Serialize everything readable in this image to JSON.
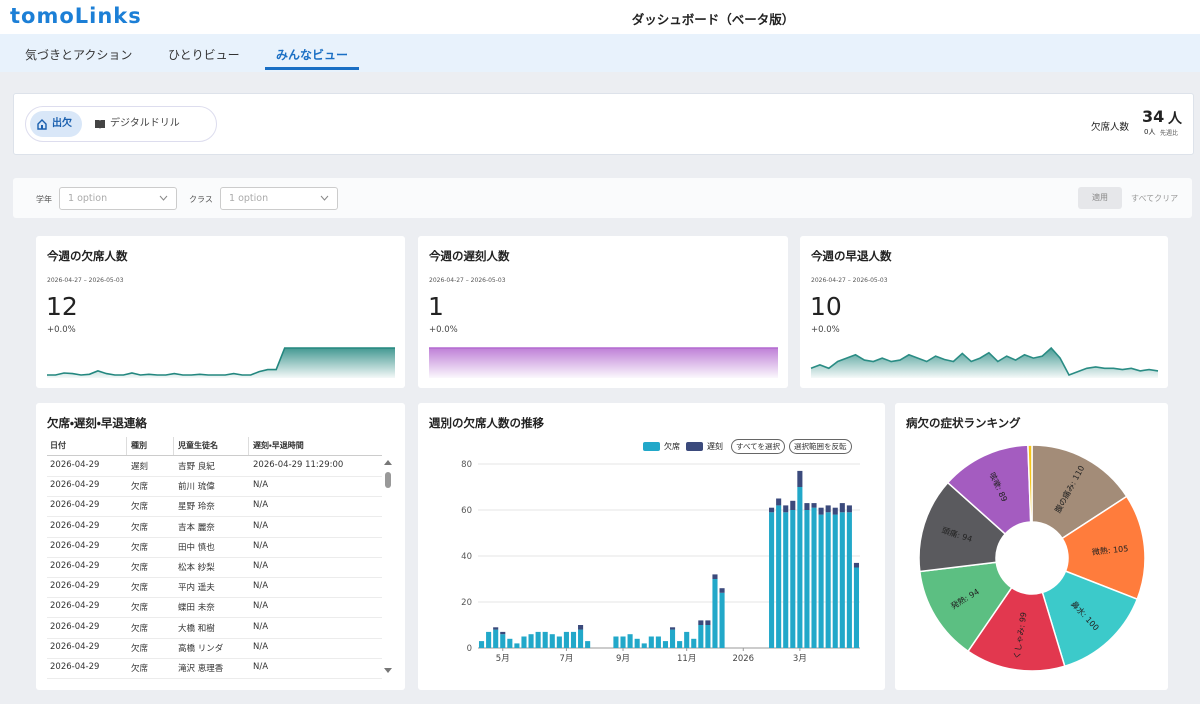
{
  "header": {
    "logo": "tomoLinks",
    "title": "ダッシュボード（ベータ版）"
  },
  "tabs": [
    "気づきとアクション",
    "ひとりビュー",
    "みんなビュー"
  ],
  "active_tab": 2,
  "toggle": {
    "options": [
      "出欠",
      "デジタルドリル"
    ],
    "active": 0
  },
  "summary": {
    "label": "欠席人数",
    "value": 34,
    "unit": "人",
    "change": "0人",
    "change_label": "先週比"
  },
  "filters": {
    "items": [
      {
        "label": "学年",
        "placeholder": "1 option"
      },
      {
        "label": "クラス",
        "placeholder": "1 option"
      }
    ],
    "apply": "適用",
    "clear": "すべてクリア"
  },
  "kpis": [
    {
      "title": "今週の欠席人数",
      "period": "2026-04-27 – 2026-05-03",
      "value": 12,
      "change": "+0.0%",
      "color": "#23877f",
      "sparkline": [
        1,
        1,
        1.3,
        1.2,
        1,
        1.1,
        1.6,
        1.2,
        1,
        1,
        1.3,
        1,
        1.1,
        1,
        1,
        1.2,
        1,
        1,
        1.1,
        1,
        1,
        1,
        1.2,
        1,
        1,
        1.5,
        1.8,
        1.8,
        5,
        5,
        5,
        5,
        5,
        5,
        5,
        5,
        5,
        5,
        5,
        5,
        5,
        5
      ]
    },
    {
      "title": "今週の遅刻人数",
      "period": "2026-04-27 – 2026-05-03",
      "value": 1,
      "change": "+0.0%",
      "color": "#b46ad0",
      "sparkline": [
        1,
        1,
        1,
        1,
        1,
        1,
        1,
        1,
        1,
        1,
        1,
        1,
        1,
        1,
        1,
        1,
        1,
        1,
        1,
        1
      ]
    },
    {
      "title": "今週の早退人数",
      "period": "2026-04-27 – 2026-05-03",
      "value": 10,
      "change": "+0.0%",
      "color": "#2a8c84",
      "sparkline": [
        2,
        2.5,
        2,
        3,
        3.5,
        4,
        3.2,
        3,
        3.5,
        3,
        3.2,
        4,
        3.5,
        3,
        3.8,
        3.3,
        3,
        4.2,
        3,
        3.5,
        4.3,
        3,
        3.8,
        3.2,
        4,
        3.5,
        3.8,
        5,
        3.5,
        1,
        1.5,
        2,
        2.2,
        2,
        2,
        1.8,
        2,
        1.6,
        1.8,
        1.6
      ]
    }
  ],
  "table": {
    "title": "欠席・遅刻・早退連絡",
    "columns": [
      "日付",
      "種別",
      "児童生徒名",
      "遅刻・早退時間"
    ],
    "rows": [
      [
        "2026-04-29",
        "遅刻",
        "吉野 良紀",
        "2026-04-29 11:29:00"
      ],
      [
        "2026-04-29",
        "欠席",
        "前川 琉偉",
        "N/A"
      ],
      [
        "2026-04-29",
        "欠席",
        "星野 玲奈",
        "N/A"
      ],
      [
        "2026-04-29",
        "欠席",
        "吉本 麗奈",
        "N/A"
      ],
      [
        "2026-04-29",
        "欠席",
        "田中 慎也",
        "N/A"
      ],
      [
        "2026-04-29",
        "欠席",
        "松本 紗梨",
        "N/A"
      ],
      [
        "2026-04-29",
        "欠席",
        "平内 遥夫",
        "N/A"
      ],
      [
        "2026-04-29",
        "欠席",
        "蝶田 未奈",
        "N/A"
      ],
      [
        "2026-04-29",
        "欠席",
        "大橋 和樹",
        "N/A"
      ],
      [
        "2026-04-29",
        "欠席",
        "高橋 リンダ",
        "N/A"
      ],
      [
        "2026-04-29",
        "欠席",
        "滝沢 恵理香",
        "N/A"
      ]
    ]
  },
  "chart_data": [
    {
      "type": "bar",
      "stacked": true,
      "title": "週別の欠席人数の推移",
      "categories": [
        null,
        null,
        null,
        "5月",
        null,
        null,
        null,
        null,
        null,
        null,
        null,
        null,
        "7月",
        null,
        null,
        null,
        null,
        null,
        null,
        null,
        "9月",
        null,
        null,
        null,
        null,
        null,
        null,
        null,
        null,
        "11月",
        null,
        null,
        null,
        null,
        null,
        null,
        null,
        "2026",
        null,
        null,
        null,
        null,
        null,
        null,
        null,
        "3月",
        null,
        null,
        null,
        null,
        null,
        null,
        null,
        null
      ],
      "series": [
        {
          "name": "欠席",
          "color": "#22a8c9",
          "values": [
            3,
            7,
            8,
            6,
            4,
            2,
            5,
            6,
            7,
            7,
            6,
            5,
            7,
            7,
            8,
            3,
            0,
            0,
            0,
            5,
            5,
            6,
            4,
            2,
            5,
            5,
            3,
            8,
            3,
            7,
            4,
            10,
            10,
            30,
            24,
            0,
            0,
            0,
            0,
            0,
            0,
            59,
            62,
            59,
            60,
            70,
            60,
            61,
            58,
            59,
            58,
            59,
            59,
            35
          ]
        },
        {
          "name": "遅刻",
          "color": "#3b4a7c",
          "values": [
            0,
            0,
            1,
            1,
            0,
            0,
            0,
            0,
            0,
            0,
            0,
            0,
            0,
            0,
            2,
            0,
            0,
            0,
            0,
            0,
            0,
            0,
            0,
            0,
            0,
            0,
            0,
            1,
            0,
            0,
            0,
            2,
            2,
            2,
            2,
            0,
            0,
            0,
            0,
            0,
            0,
            2,
            3,
            3,
            4,
            7,
            3,
            2,
            3,
            3,
            3,
            4,
            3,
            2
          ]
        }
      ],
      "legend_buttons": [
        "すべてを選択",
        "選択範囲を反転"
      ],
      "ylim": [
        0,
        80
      ],
      "yticks": [
        0,
        20,
        40,
        60,
        80
      ],
      "grid": true
    },
    {
      "type": "pie",
      "donut": true,
      "title": "病欠の症状ランキング",
      "values": [
        110,
        105,
        100,
        99,
        94,
        94,
        89,
        4
      ],
      "value_labels": [
        "腹の痛み: 110",
        "微熱: 105",
        "鼻水: 100",
        "くしゃみ: 99",
        "発熱: 94",
        "頭痛: 94",
        "咳嗽: 89",
        null
      ],
      "colors": [
        "#a38c78",
        "#ff7c3c",
        "#3ccaca",
        "#e2384f",
        "#5cbf82",
        "#5a5a5e",
        "#a45cc0",
        "#f5c518"
      ]
    }
  ]
}
